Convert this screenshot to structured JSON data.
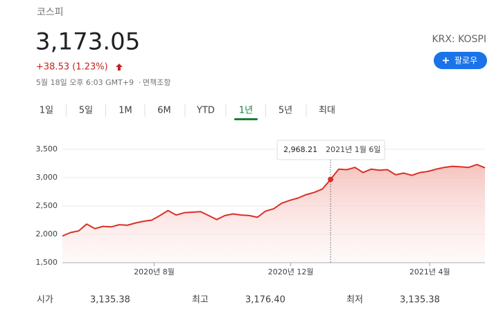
{
  "header": {
    "name": "코스피",
    "price": "3,173.05",
    "change": "+38.53 (1.23%)",
    "timestamp": "5월 18일 오후 6:03 GMT+9",
    "disclaimer": "면책조항",
    "exchange": "KRX: KOSPI",
    "follow": "팔로우"
  },
  "tabs": [
    "1일",
    "5일",
    "1M",
    "6M",
    "YTD",
    "1년",
    "5년",
    "최대"
  ],
  "selected_tab": "1년",
  "chart_data": {
    "type": "line",
    "color": "#d93025",
    "grid": true,
    "x": [
      0,
      1,
      2,
      3,
      4,
      5,
      6,
      7,
      8,
      9,
      10,
      11,
      12,
      13,
      14,
      15,
      16,
      17,
      18,
      19,
      20,
      21,
      22,
      23,
      24,
      25,
      26,
      27,
      28,
      29,
      30,
      31,
      32,
      33,
      34,
      35,
      36,
      37,
      38,
      39,
      40,
      41,
      42,
      43,
      44,
      45,
      46,
      47,
      48,
      49,
      50,
      51,
      52
    ],
    "values": [
      1970,
      2030,
      2060,
      2180,
      2100,
      2140,
      2130,
      2170,
      2160,
      2200,
      2230,
      2250,
      2330,
      2420,
      2340,
      2380,
      2390,
      2400,
      2330,
      2260,
      2330,
      2360,
      2340,
      2330,
      2300,
      2410,
      2450,
      2550,
      2600,
      2640,
      2700,
      2740,
      2800,
      2968.21,
      3150,
      3140,
      3180,
      3090,
      3150,
      3130,
      3140,
      3050,
      3080,
      3040,
      3090,
      3110,
      3150,
      3180,
      3200,
      3190,
      3180,
      3230,
      3173.05
    ],
    "xlim": [
      0,
      52
    ],
    "xticks": [
      {
        "value": 11.3,
        "label": "2020년 8월"
      },
      {
        "value": 28.1,
        "label": "2020년 12월"
      },
      {
        "value": 45.2,
        "label": "2021년 4월"
      }
    ],
    "ylim": [
      1500,
      3500
    ],
    "yticks": [
      {
        "value": 1500,
        "label": "1,500"
      },
      {
        "value": 2000,
        "label": "2,000"
      },
      {
        "value": 2500,
        "label": "2,500"
      },
      {
        "value": 3000,
        "label": "3,000"
      },
      {
        "value": 3500,
        "label": "3,500"
      }
    ],
    "tooltip": {
      "x": 33,
      "value": "2,968.21",
      "date": "2021년 1월 6일"
    }
  },
  "stats": [
    {
      "label": "시가",
      "value": "3,135.38"
    },
    {
      "label": "최고",
      "value": "3,176.40"
    },
    {
      "label": "최저",
      "value": "3,135.38"
    }
  ]
}
